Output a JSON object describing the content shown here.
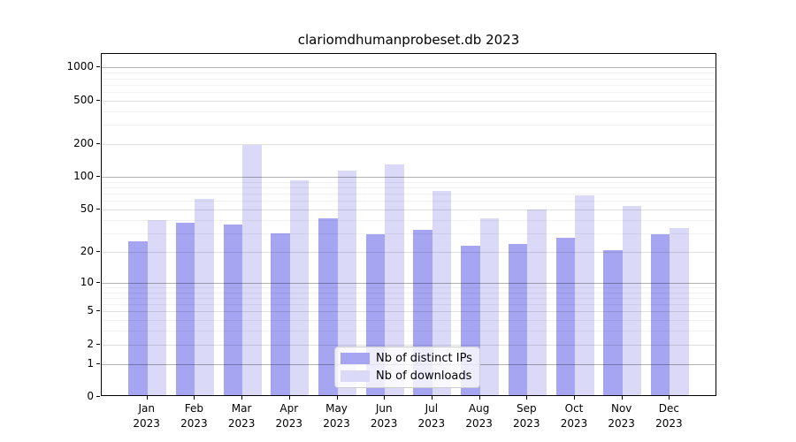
{
  "title": "clariomdhumanprobeset.db 2023",
  "chart_data": {
    "type": "bar",
    "title": "clariomdhumanprobeset.db 2023",
    "categories": [
      "Jan 2023",
      "Feb 2023",
      "Mar 2023",
      "Apr 2023",
      "May 2023",
      "Jun 2023",
      "Jul 2023",
      "Aug 2023",
      "Sep 2023",
      "Oct 2023",
      "Nov 2023",
      "Dec 2023"
    ],
    "x_tick_month_labels": [
      "Jan",
      "Feb",
      "Mar",
      "Apr",
      "May",
      "Jun",
      "Jul",
      "Aug",
      "Sep",
      "Oct",
      "Nov",
      "Dec"
    ],
    "x_tick_year_label": "2023",
    "series": [
      {
        "name": "Nb of distinct IPs",
        "color": "#a5a5f2",
        "values": [
          24,
          36,
          35,
          29,
          40,
          28,
          31,
          22,
          23,
          26,
          20,
          28
        ]
      },
      {
        "name": "Nb of downloads",
        "color": "#dadaf8",
        "values": [
          38,
          60,
          190,
          90,
          110,
          125,
          71,
          40,
          48,
          65,
          52,
          32
        ]
      }
    ],
    "y_scale": "log10(value+1)",
    "ylim": [
      0,
      1320
    ],
    "y_tick_values": [
      0,
      1,
      2,
      5,
      10,
      20,
      50,
      100,
      200,
      500,
      1000
    ],
    "y_tick_labels": [
      "0",
      "1",
      "2",
      "5",
      "10",
      "20",
      "50",
      "100",
      "200",
      "500",
      "1000"
    ],
    "y_minor_grid_values": [
      3,
      4,
      6,
      7,
      8,
      9,
      30,
      40,
      60,
      70,
      80,
      90,
      300,
      400,
      600,
      700,
      800,
      900
    ],
    "y_emphasized_grid_values": [
      1,
      10,
      100,
      1000
    ],
    "grid": true,
    "legend_position": "lower center",
    "xlabel": "",
    "ylabel": ""
  },
  "colors": {
    "distinct_ips_bar": "#a5a5f2",
    "downloads_bar": "#dadaf8",
    "grid_major": "#e0e0e0",
    "grid_emphasized": "#b3b3b3",
    "grid_minor": "#f0f0f0",
    "spine": "#000000"
  }
}
